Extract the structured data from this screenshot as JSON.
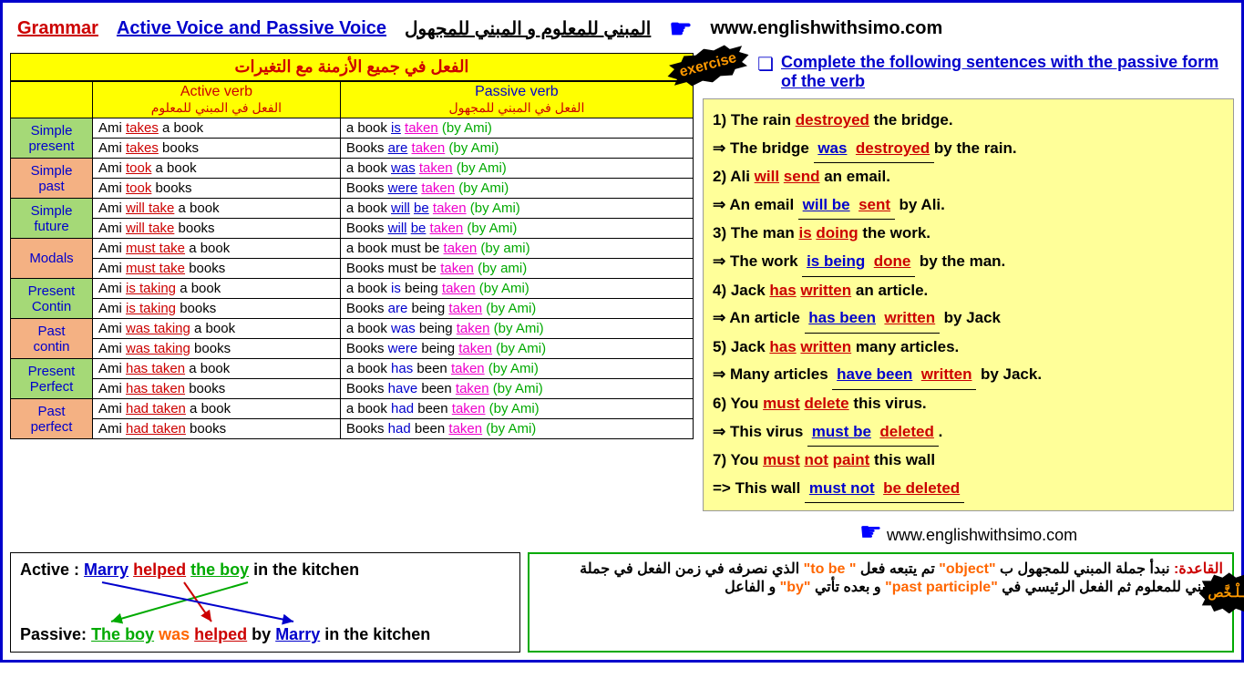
{
  "header": {
    "grammar": "Grammar",
    "title": "Active Voice and Passive Voice",
    "arabic_title": "المبني للمعلوم و المبني للمجهول",
    "url": "www.englishwithsimo.com"
  },
  "table": {
    "title": "الفعل في جميع الأزمنة مع التغيرات",
    "active_header": "Active verb",
    "active_arabic": "الفعل في المبني للمعلوم",
    "passive_header": "Passive verb",
    "passive_arabic": "الفعل في المبني للمجهول",
    "tenses": [
      {
        "name": "Simple present",
        "bg": "green",
        "rows": [
          {
            "a1": "Ami ",
            "a2": "takes",
            "a3": " a book",
            "p1": "a book ",
            "p2": "is",
            "p3": " ",
            "p4": "taken",
            "p5": " ",
            "by": "(by Ami)"
          },
          {
            "a1": "Ami ",
            "a2": "takes",
            "a3": " books",
            "p1": "Books ",
            "p2": "are",
            "p3": " ",
            "p4": "taken",
            "p5": " ",
            "by": "(by Ami)"
          }
        ]
      },
      {
        "name": "Simple past",
        "bg": "orange",
        "rows": [
          {
            "a1": "Ami ",
            "a2": "took",
            "a3": " a book",
            "p1": "a book ",
            "p2": "was",
            "p3": " ",
            "p4": "taken",
            "p5": " ",
            "by": "(by Ami)"
          },
          {
            "a1": "Ami ",
            "a2": "took",
            "a3": " books",
            "p1": "Books ",
            "p2": "were",
            "p3": " ",
            "p4": "taken",
            "p5": " ",
            "by": "(by Ami)"
          }
        ]
      },
      {
        "name": "Simple future",
        "bg": "green",
        "rows": [
          {
            "a1": "Ami ",
            "a2": "will take",
            "a3": " a book",
            "p1": "a book ",
            "p2": "will",
            "p3": " ",
            "p4": "be",
            "p5": " ",
            "p6": "taken",
            "by": " (by Ami)"
          },
          {
            "a1": "Ami ",
            "a2": "will take",
            "a3": " books",
            "p1": "Books ",
            "p2": "will",
            "p3": " ",
            "p4": "be",
            "p5": " ",
            "p6": "taken",
            "by": " (by Ami)"
          }
        ]
      },
      {
        "name": "Modals",
        "bg": "orange",
        "rows": [
          {
            "a1": "Ami ",
            "a2": "must take",
            "a3": " a book",
            "p1": "a book must be ",
            "p4": "taken",
            "by": " (by ami)"
          },
          {
            "a1": "Ami ",
            "a2": "must take",
            "a3": " books",
            "p1": "Books must be ",
            "p4": "taken",
            "by": " (by ami)"
          }
        ]
      },
      {
        "name": "Present Contin",
        "bg": "green",
        "rows": [
          {
            "a1": "Ami ",
            "a2": "is taking",
            "a3": " a book",
            "p1": "a book is being ",
            "p4": "taken",
            "by": " (by Ami)"
          },
          {
            "a1": "Ami ",
            "a2": "is taking",
            "a3": " books",
            "p1": "Books are being ",
            "p4": "taken",
            "by": " (by Ami)"
          }
        ]
      },
      {
        "name": "Past contin",
        "bg": "orange",
        "rows": [
          {
            "a1": "Ami ",
            "a2": "was taking",
            "a3": " a book",
            "p1": "a book was being ",
            "p4": "taken",
            "by": " (by Ami)"
          },
          {
            "a1": "Ami ",
            "a2": "was taking",
            "a3": " books",
            "p1": "Books were being ",
            "p4": "taken",
            "by": " (by Ami)"
          }
        ]
      },
      {
        "name": "Present Perfect",
        "bg": "green",
        "rows": [
          {
            "a1": "Ami ",
            "a2": "has taken",
            "a3": " a book",
            "p1": "a book has been ",
            "p4": "taken",
            "by": " (by Ami)"
          },
          {
            "a1": "Ami ",
            "a2": "has taken",
            "a3": " books",
            "p1": "Books have been ",
            "p4": "taken",
            "by": " (by Ami)"
          }
        ]
      },
      {
        "name": "Past perfect",
        "bg": "orange",
        "rows": [
          {
            "a1": "Ami ",
            "a2": "had taken",
            "a3": " a book",
            "p1": "a book had been ",
            "p4": "taken",
            "by": " (by Ami)"
          },
          {
            "a1": "Ami ",
            "a2": "had taken",
            "a3": " books",
            "p1": "Books had been ",
            "p4": "taken",
            "by": " (by Ami)"
          }
        ]
      }
    ]
  },
  "exercise": {
    "burst": "exercise",
    "instruction": "Complete the following sentences with the passive form of the verb",
    "items": [
      {
        "n": "1)",
        "q1": "   The rain ",
        "q2": "destroyed",
        "q3": " the bridge.",
        "a_pre": "⇒ The bridge ",
        "a1": "was",
        "a2": "destroyed",
        "a_post": "by the rain."
      },
      {
        "n": "2)",
        "q1": " Ali ",
        "q2": "will",
        "q2b": "send",
        "q3": " an email.",
        "a_pre": "⇒ An email ",
        "a1": "will be",
        "a2": "sent",
        "a_post": " by Ali."
      },
      {
        "n": "3)",
        "q1": " The man ",
        "q2": "is",
        "q2b": "doing",
        "q3": " the work.",
        "a_pre": "⇒ The work ",
        "a1": "is being",
        "a2": "done",
        "a_post": " by the man."
      },
      {
        "n": "4)",
        "q1": " Jack ",
        "q2": "has",
        "q2b": "written",
        "q3": " an article.",
        "a_pre": "⇒ An article ",
        "a1": "has been",
        "a2": "written",
        "a_post": " by Jack"
      },
      {
        "n": "5)",
        "q1": " Jack ",
        "q2": "has",
        "q2b": "written",
        "q3": " many articles.",
        "a_pre": "⇒ Many articles ",
        "a1": "have been",
        "a2": "written",
        "a_post": " by Jack."
      },
      {
        "n": "6)",
        "q1": " You ",
        "q2": "must",
        "q2b": "delete",
        "q3": " this virus.",
        "a_pre": "⇒ This virus ",
        "a1": "must be",
        "a2": "deleted",
        "a_post": "."
      },
      {
        "n": "7)",
        "q1": " You ",
        "q2": "must",
        "q2b": "not",
        "q2c": "paint",
        "q3": " this wall",
        "a_pre": "=> This wall ",
        "a1": "must not",
        "a2": "be deleted",
        "a_post": ""
      }
    ],
    "url": "www.englishwithsimo.com"
  },
  "transform": {
    "active_label": "Active :",
    "active": {
      "subj": "Marry",
      "verb": "helped",
      "obj": "the boy",
      "rest": " in the kitchen"
    },
    "passive_label": "Passive: ",
    "passive": {
      "subj": "The boy",
      "aux": "was",
      "verb": "helped",
      "by": " by ",
      "agent": "Marry",
      "rest": " in the kitchen"
    }
  },
  "rule": {
    "label": "القاعدة:",
    "text1": " نبدأ جملة المبني للمجهول ب ",
    "obj": "\"object\"",
    "text2": " تم يتبعه فعل ",
    "to": "\" to be\"",
    "text3": " الذي نصرفه في زمن الفعل في جملة المبني للمعلوم ثم الفعل الرئيسي في ",
    "pp": "\"past participle\"",
    "text4": " و بعده تأتي ",
    "by": "\"by\"",
    "text5": " و الفاعل",
    "burst": "مُـلْـخَّص"
  }
}
